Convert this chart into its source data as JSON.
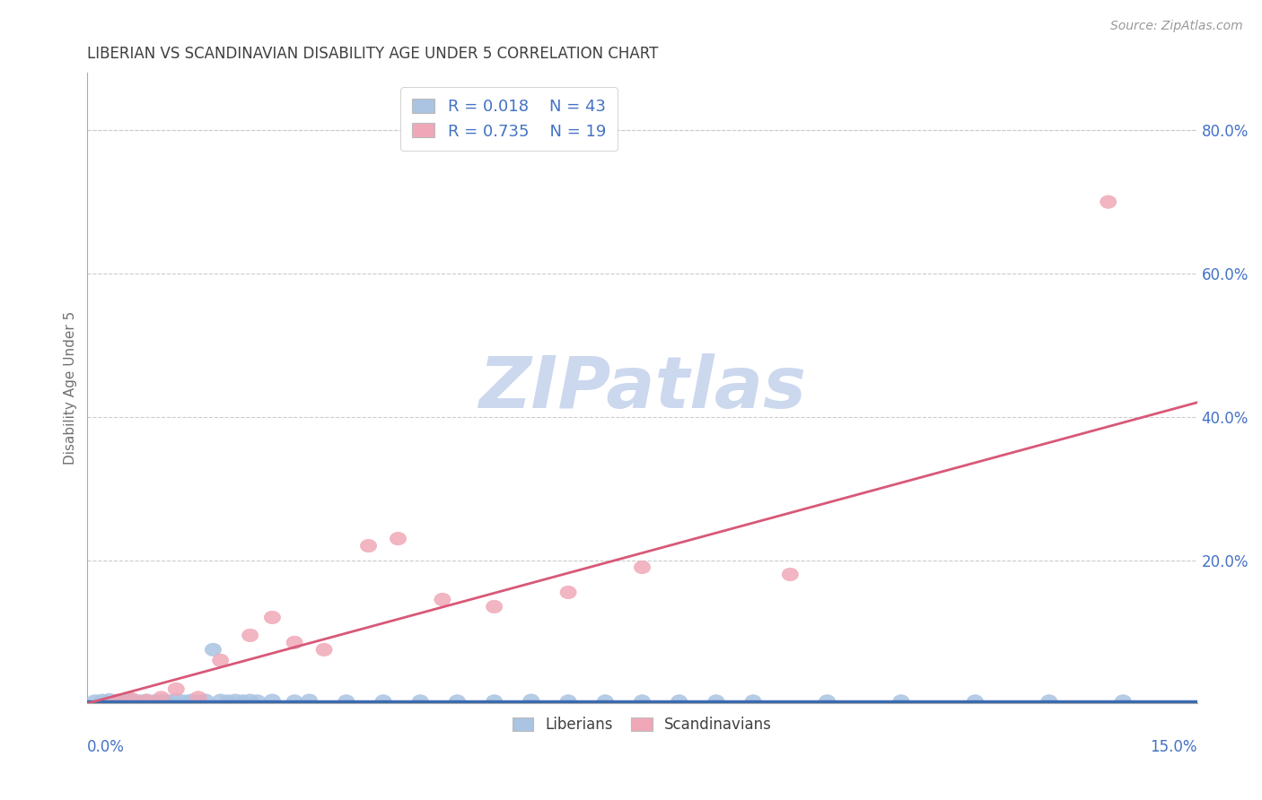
{
  "title": "LIBERIAN VS SCANDINAVIAN DISABILITY AGE UNDER 5 CORRELATION CHART",
  "source": "Source: ZipAtlas.com",
  "ylabel": "Disability Age Under 5",
  "xlim": [
    0.0,
    0.15
  ],
  "ylim": [
    0.0,
    0.88
  ],
  "yticks": [
    0.0,
    0.2,
    0.4,
    0.6,
    0.8
  ],
  "ytick_labels": [
    "",
    "20.0%",
    "40.0%",
    "60.0%",
    "80.0%"
  ],
  "liberian_R": 0.018,
  "liberian_N": 43,
  "scandinavian_R": 0.735,
  "scandinavian_N": 19,
  "blue_color": "#aac4e2",
  "pink_color": "#f0a8b8",
  "blue_line_color": "#3a6ab0",
  "pink_line_color": "#d85878",
  "title_color": "#404040",
  "axis_label_color": "#4472c4",
  "watermark_color": "#ccd8ee",
  "background_color": "#ffffff",
  "grid_color": "#cccccc",
  "spine_color": "#aaaaaa",
  "liberian_x": [
    0.001,
    0.002,
    0.003,
    0.004,
    0.005,
    0.006,
    0.007,
    0.008,
    0.009,
    0.01,
    0.011,
    0.012,
    0.013,
    0.014,
    0.015,
    0.016,
    0.017,
    0.018,
    0.019,
    0.02,
    0.021,
    0.022,
    0.023,
    0.025,
    0.028,
    0.03,
    0.035,
    0.04,
    0.045,
    0.05,
    0.055,
    0.06,
    0.065,
    0.07,
    0.075,
    0.08,
    0.085,
    0.09,
    0.1,
    0.11,
    0.12,
    0.13,
    0.14
  ],
  "liberian_y": [
    0.003,
    0.004,
    0.005,
    0.003,
    0.004,
    0.005,
    0.003,
    0.004,
    0.003,
    0.004,
    0.003,
    0.005,
    0.003,
    0.004,
    0.003,
    0.004,
    0.003,
    0.004,
    0.003,
    0.004,
    0.003,
    0.004,
    0.003,
    0.004,
    0.003,
    0.004,
    0.003,
    0.003,
    0.003,
    0.003,
    0.003,
    0.004,
    0.003,
    0.003,
    0.003,
    0.003,
    0.003,
    0.003,
    0.003,
    0.003,
    0.003,
    0.003,
    0.003
  ],
  "liberian_y_special": [
    [
      16,
      0.075
    ]
  ],
  "scandinavian_x": [
    0.004,
    0.006,
    0.008,
    0.01,
    0.012,
    0.015,
    0.018,
    0.022,
    0.025,
    0.028,
    0.032,
    0.038,
    0.042,
    0.048,
    0.055,
    0.065,
    0.075,
    0.095,
    0.138
  ],
  "scandinavian_y": [
    0.004,
    0.006,
    0.004,
    0.008,
    0.02,
    0.008,
    0.06,
    0.095,
    0.12,
    0.085,
    0.075,
    0.22,
    0.23,
    0.145,
    0.135,
    0.155,
    0.19,
    0.18,
    0.7
  ],
  "pink_line_x0": 0.0,
  "pink_line_y0": 0.0,
  "pink_line_x1": 0.15,
  "pink_line_y1": 0.42,
  "blue_line_x0": 0.0,
  "blue_line_y0": 0.003,
  "blue_line_x1": 0.15,
  "blue_line_y1": 0.003
}
